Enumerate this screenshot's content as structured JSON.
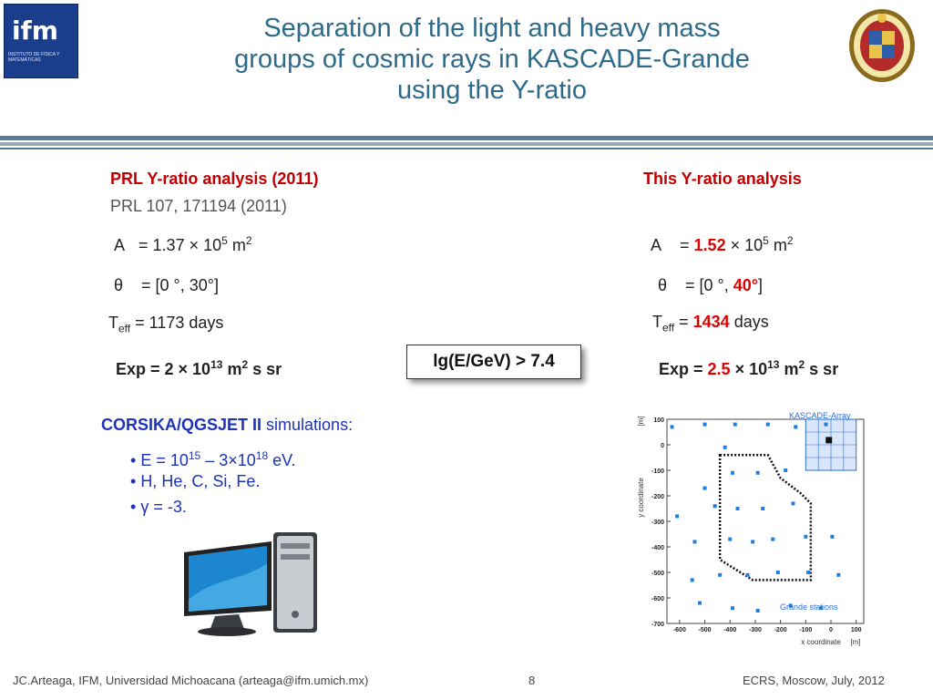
{
  "header": {
    "logo_left_text": "ifm",
    "logo_left_sub": "INSTITUTO DE FÍSICA Y MATEMÁTICAS",
    "title_lines": [
      "Separation of the light and heavy mass",
      "groups of cosmic rays in KASCADE-Grande",
      "using the Y-ratio"
    ]
  },
  "left": {
    "heading": "PRL Y-ratio analysis (2011)",
    "ref": "PRL 107, 171194 (2011)",
    "area_label": "A",
    "area_value": "= 1.37 × 10",
    "area_exp": "5",
    "area_unit": " m",
    "area_unit_exp": "2",
    "theta_symbol": "θ",
    "theta_value": "= [0 °, 30°]",
    "teff_T": "T",
    "teff_sub": "eff",
    "teff_value": " = 1173 days",
    "exp_value": "Exp = 2 × 10",
    "exp_exp": "13",
    "exp_unit": " m",
    "exp_unit_exp": "2",
    "exp_tail": " s sr"
  },
  "right": {
    "heading": "This Y-ratio analysis",
    "area_label": "A",
    "area_eq": "= ",
    "area_num": "1.52",
    "area_times": " × 10",
    "area_exp": "5",
    "area_unit": " m",
    "area_unit_exp": "2",
    "theta_symbol": "θ",
    "theta_pre": "= [0 °, ",
    "theta_red": "40°",
    "theta_post": "]",
    "teff_T": "T",
    "teff_sub": "eff",
    "teff_eq": " = ",
    "teff_red": "1434",
    "teff_post": " days",
    "exp_pre": "Exp = ",
    "exp_red": "2.5",
    "exp_times": " × 10",
    "exp_exp": "13",
    "exp_unit": " m",
    "exp_unit_exp": "2",
    "exp_tail": " s sr"
  },
  "cut_box": "lg(E/GeV)  > 7.4",
  "simulations": {
    "heading": "CORSIKA/QGSJET II",
    "heading_tail": " simulations:",
    "bullets": [
      {
        "pre": "E = 10",
        "exp1": "15",
        "mid": " – 3×10",
        "exp2": "18",
        "post": " eV."
      },
      {
        "text": "H, He, C, Si, Fe."
      },
      {
        "text": "γ = -3."
      }
    ]
  },
  "detector_map": {
    "y_axis_label": "y coordinate",
    "y_unit": "[m]",
    "x_axis_label": "x coordinate",
    "x_unit": "[m]",
    "y_ticks": [
      "100",
      "0",
      "-100",
      "-200",
      "-300",
      "-400",
      "-500",
      "-600",
      "-700"
    ],
    "x_ticks": [
      "-600",
      "-500",
      "-400",
      "-300",
      "-200",
      "-100",
      "0",
      "100"
    ],
    "array_label": "KASCADE-Array",
    "stations_label": "Grande stations",
    "station_color": "#1e7fe0",
    "stations": [
      [
        -630,
        70
      ],
      [
        -500,
        80
      ],
      [
        -380,
        80
      ],
      [
        -250,
        80
      ],
      [
        -140,
        70
      ],
      [
        -20,
        80
      ],
      [
        -420,
        -10
      ],
      [
        -390,
        -110
      ],
      [
        -290,
        -110
      ],
      [
        -180,
        -100
      ],
      [
        -460,
        -240
      ],
      [
        -500,
        -170
      ],
      [
        -370,
        -250
      ],
      [
        -270,
        -250
      ],
      [
        -150,
        -230
      ],
      [
        -610,
        -280
      ],
      [
        -540,
        -380
      ],
      [
        -400,
        -370
      ],
      [
        -310,
        -380
      ],
      [
        -230,
        -370
      ],
      [
        -100,
        -360
      ],
      [
        5,
        -360
      ],
      [
        -550,
        -530
      ],
      [
        -440,
        -510
      ],
      [
        -330,
        -510
      ],
      [
        -210,
        -500
      ],
      [
        -90,
        -500
      ],
      [
        30,
        -510
      ],
      [
        -520,
        -620
      ],
      [
        -390,
        -640
      ],
      [
        -290,
        -650
      ],
      [
        -160,
        -630
      ],
      [
        -40,
        -640
      ]
    ],
    "fiducial_area": [
      [
        -440,
        -40
      ],
      [
        -250,
        -40
      ],
      [
        -200,
        -130
      ],
      [
        -120,
        -190
      ],
      [
        -80,
        -230
      ],
      [
        -80,
        -530
      ],
      [
        -310,
        -530
      ],
      [
        -440,
        -450
      ]
    ]
  },
  "footer": {
    "left": "JC.Arteaga, IFM,  Universidad Michoacana  (arteaga@ifm.umich.mx)",
    "page": "8",
    "right": "ECRS, Moscow, July, 2012"
  }
}
